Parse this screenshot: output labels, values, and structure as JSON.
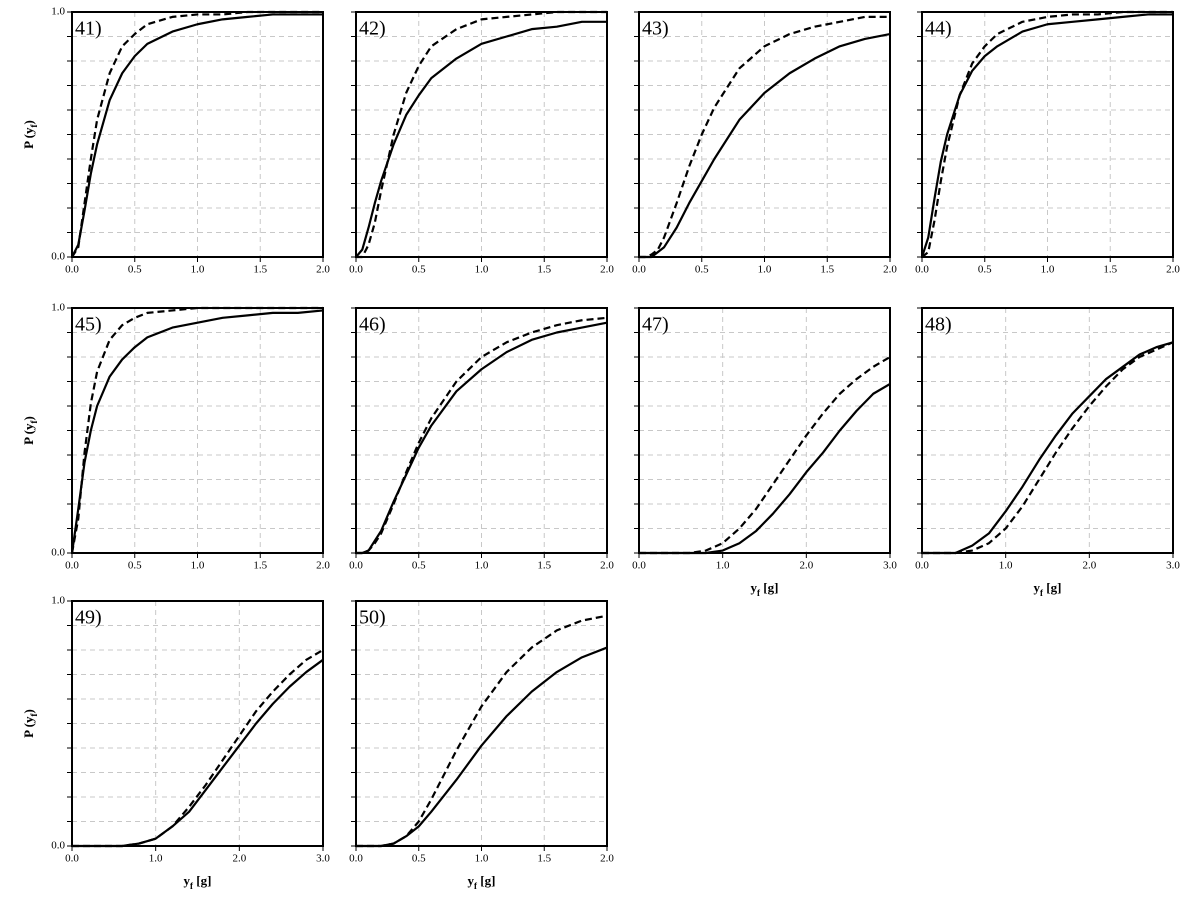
{
  "chart_data": [
    {
      "type": "line",
      "label": "41)",
      "ylabel": [
        "P (y",
        "f",
        ")"
      ],
      "x": [
        0,
        0.05,
        0.1,
        0.15,
        0.2,
        0.3,
        0.4,
        0.5,
        0.6,
        0.8,
        1,
        1.2,
        1.4,
        1.6,
        1.8,
        2
      ],
      "series": [
        {
          "color": "#000000",
          "dash": false,
          "values": [
            0,
            0.05,
            0.19,
            0.34,
            0.46,
            0.64,
            0.75,
            0.82,
            0.87,
            0.92,
            0.95,
            0.97,
            0.98,
            0.99,
            0.99,
            0.99
          ]
        },
        {
          "color": "#000000",
          "dash": true,
          "values": [
            0,
            0.04,
            0.22,
            0.4,
            0.56,
            0.75,
            0.86,
            0.91,
            0.95,
            0.98,
            0.99,
            0.99,
            1,
            1,
            1,
            1
          ]
        }
      ],
      "xlim": [
        0,
        2
      ],
      "xticks": [
        {
          "value": 0,
          "label": "0.0"
        },
        {
          "value": 0.5,
          "label": "0.5"
        },
        {
          "value": 1,
          "label": "1.0"
        },
        {
          "value": 1.5,
          "label": "1.5"
        },
        {
          "value": 2,
          "label": "2.0"
        }
      ],
      "ylim": [
        0,
        1
      ],
      "yticks": [
        {
          "value": 0,
          "label": "0.0"
        },
        0.1,
        0.2,
        0.3,
        0.4,
        0.5,
        0.6,
        0.7,
        0.8,
        0.9,
        {
          "value": 1,
          "label": "1.0"
        }
      ],
      "grid": true
    },
    {
      "type": "line",
      "label": "42)",
      "x": [
        0,
        0.05,
        0.1,
        0.15,
        0.2,
        0.3,
        0.4,
        0.5,
        0.6,
        0.8,
        1,
        1.2,
        1.4,
        1.6,
        1.8,
        2
      ],
      "series": [
        {
          "color": "#000000",
          "dash": false,
          "values": [
            0,
            0.03,
            0.12,
            0.22,
            0.31,
            0.46,
            0.58,
            0.66,
            0.73,
            0.81,
            0.87,
            0.9,
            0.93,
            0.94,
            0.96,
            0.96
          ]
        },
        {
          "color": "#000000",
          "dash": true,
          "values": [
            0,
            0,
            0.05,
            0.14,
            0.27,
            0.5,
            0.67,
            0.78,
            0.86,
            0.93,
            0.97,
            0.98,
            0.99,
            1,
            1,
            1
          ]
        }
      ],
      "xlim": [
        0,
        2
      ],
      "xticks": [
        {
          "value": 0,
          "label": "0.0"
        },
        {
          "value": 0.5,
          "label": "0.5"
        },
        {
          "value": 1,
          "label": "1.0"
        },
        {
          "value": 1.5,
          "label": "1.5"
        },
        {
          "value": 2,
          "label": "2.0"
        }
      ],
      "ylim": [
        0,
        1
      ],
      "yticks": [
        0,
        0.1,
        0.2,
        0.3,
        0.4,
        0.5,
        0.6,
        0.7,
        0.8,
        0.9,
        1
      ],
      "grid": true
    },
    {
      "type": "line",
      "label": "43)",
      "x": [
        0,
        0.05,
        0.1,
        0.15,
        0.2,
        0.3,
        0.4,
        0.5,
        0.6,
        0.8,
        1,
        1.2,
        1.4,
        1.6,
        1.8,
        2
      ],
      "series": [
        {
          "color": "#000000",
          "dash": false,
          "values": [
            0,
            0,
            0,
            0.02,
            0.04,
            0.12,
            0.22,
            0.31,
            0.4,
            0.56,
            0.67,
            0.75,
            0.81,
            0.86,
            0.89,
            0.91
          ]
        },
        {
          "color": "#000000",
          "dash": true,
          "values": [
            0,
            0,
            0.01,
            0.03,
            0.08,
            0.22,
            0.37,
            0.5,
            0.61,
            0.77,
            0.86,
            0.91,
            0.94,
            0.96,
            0.98,
            0.98
          ]
        }
      ],
      "xlim": [
        0,
        2
      ],
      "xticks": [
        {
          "value": 0,
          "label": "0.0"
        },
        {
          "value": 0.5,
          "label": "0.5"
        },
        {
          "value": 1,
          "label": "1.0"
        },
        {
          "value": 1.5,
          "label": "1.5"
        },
        {
          "value": 2,
          "label": "2.0"
        }
      ],
      "ylim": [
        0,
        1
      ],
      "yticks": [
        0,
        0.1,
        0.2,
        0.3,
        0.4,
        0.5,
        0.6,
        0.7,
        0.8,
        0.9,
        1
      ],
      "grid": true
    },
    {
      "type": "line",
      "label": "44)",
      "x": [
        0,
        0.05,
        0.1,
        0.15,
        0.2,
        0.3,
        0.4,
        0.5,
        0.6,
        0.8,
        1,
        1.2,
        1.4,
        1.6,
        1.8,
        2
      ],
      "series": [
        {
          "color": "#000000",
          "dash": false,
          "values": [
            0,
            0.08,
            0.24,
            0.39,
            0.5,
            0.66,
            0.76,
            0.82,
            0.86,
            0.92,
            0.95,
            0.96,
            0.97,
            0.98,
            0.99,
            0.99
          ]
        },
        {
          "color": "#000000",
          "dash": true,
          "values": [
            0,
            0.02,
            0.15,
            0.31,
            0.45,
            0.66,
            0.79,
            0.86,
            0.91,
            0.96,
            0.98,
            0.99,
            0.99,
            1,
            1,
            1
          ]
        }
      ],
      "xlim": [
        0,
        2
      ],
      "xticks": [
        {
          "value": 0,
          "label": "0.0"
        },
        {
          "value": 0.5,
          "label": "0.5"
        },
        {
          "value": 1,
          "label": "1.0"
        },
        {
          "value": 1.5,
          "label": "1.5"
        },
        {
          "value": 2,
          "label": "2.0"
        }
      ],
      "ylim": [
        0,
        1
      ],
      "yticks": [
        0,
        0.1,
        0.2,
        0.3,
        0.4,
        0.5,
        0.6,
        0.7,
        0.8,
        0.9,
        1
      ],
      "grid": true
    },
    {
      "type": "line",
      "label": "45)",
      "ylabel": [
        "P (y",
        "f",
        ")"
      ],
      "x": [
        0,
        0.05,
        0.1,
        0.15,
        0.2,
        0.3,
        0.4,
        0.5,
        0.6,
        0.8,
        1,
        1.2,
        1.4,
        1.6,
        1.8,
        2
      ],
      "series": [
        {
          "color": "#000000",
          "dash": false,
          "values": [
            0,
            0.18,
            0.37,
            0.5,
            0.6,
            0.72,
            0.79,
            0.84,
            0.88,
            0.92,
            0.94,
            0.96,
            0.97,
            0.98,
            0.98,
            0.99
          ]
        },
        {
          "color": "#000000",
          "dash": true,
          "values": [
            0,
            0.14,
            0.41,
            0.61,
            0.74,
            0.87,
            0.93,
            0.96,
            0.98,
            0.99,
            1,
            1,
            1,
            1,
            1,
            1
          ]
        }
      ],
      "xlim": [
        0,
        2
      ],
      "xticks": [
        {
          "value": 0,
          "label": "0.0"
        },
        {
          "value": 0.5,
          "label": "0.5"
        },
        {
          "value": 1,
          "label": "1.0"
        },
        {
          "value": 1.5,
          "label": "1.5"
        },
        {
          "value": 2,
          "label": "2.0"
        }
      ],
      "ylim": [
        0,
        1
      ],
      "yticks": [
        {
          "value": 0,
          "label": "0.0"
        },
        0.1,
        0.2,
        0.3,
        0.4,
        0.5,
        0.6,
        0.7,
        0.8,
        0.9,
        {
          "value": 1,
          "label": "1.0"
        }
      ],
      "grid": true
    },
    {
      "type": "line",
      "label": "46)",
      "x": [
        0,
        0.05,
        0.1,
        0.15,
        0.2,
        0.3,
        0.4,
        0.5,
        0.6,
        0.8,
        1,
        1.2,
        1.4,
        1.6,
        1.8,
        2
      ],
      "series": [
        {
          "color": "#000000",
          "dash": false,
          "values": [
            0,
            0,
            0.01,
            0.05,
            0.09,
            0.21,
            0.32,
            0.43,
            0.52,
            0.66,
            0.75,
            0.82,
            0.87,
            0.9,
            0.92,
            0.94
          ]
        },
        {
          "color": "#000000",
          "dash": true,
          "values": [
            0,
            0,
            0.01,
            0.04,
            0.08,
            0.2,
            0.33,
            0.45,
            0.55,
            0.7,
            0.8,
            0.86,
            0.9,
            0.93,
            0.95,
            0.96
          ]
        }
      ],
      "xlim": [
        0,
        2
      ],
      "xticks": [
        {
          "value": 0,
          "label": "0.0"
        },
        {
          "value": 0.5,
          "label": "0.5"
        },
        {
          "value": 1,
          "label": "1.0"
        },
        {
          "value": 1.5,
          "label": "1.5"
        },
        {
          "value": 2,
          "label": "2.0"
        }
      ],
      "ylim": [
        0,
        1
      ],
      "yticks": [
        0,
        0.1,
        0.2,
        0.3,
        0.4,
        0.5,
        0.6,
        0.7,
        0.8,
        0.9,
        1
      ],
      "grid": true
    },
    {
      "type": "line",
      "label": "47)",
      "xlabel": [
        "y",
        "f",
        " [g]"
      ],
      "x": [
        0,
        0.2,
        0.4,
        0.6,
        0.8,
        1,
        1.2,
        1.4,
        1.6,
        1.8,
        2,
        2.2,
        2.4,
        2.6,
        2.8,
        3
      ],
      "series": [
        {
          "color": "#000000",
          "dash": false,
          "values": [
            0,
            0,
            0,
            0,
            0,
            0.01,
            0.04,
            0.09,
            0.16,
            0.24,
            0.33,
            0.41,
            0.5,
            0.58,
            0.65,
            0.69
          ]
        },
        {
          "color": "#000000",
          "dash": true,
          "values": [
            0,
            0,
            0,
            0,
            0.01,
            0.04,
            0.1,
            0.18,
            0.28,
            0.38,
            0.48,
            0.57,
            0.65,
            0.71,
            0.76,
            0.8
          ]
        }
      ],
      "xlim": [
        0,
        3
      ],
      "xticks": [
        {
          "value": 0,
          "label": "0.0"
        },
        {
          "value": 1,
          "label": "1.0"
        },
        {
          "value": 2,
          "label": "2.0"
        },
        {
          "value": 3,
          "label": "3.0"
        }
      ],
      "ylim": [
        0,
        1
      ],
      "yticks": [
        0,
        0.1,
        0.2,
        0.3,
        0.4,
        0.5,
        0.6,
        0.7,
        0.8,
        0.9,
        1
      ],
      "grid": true
    },
    {
      "type": "line",
      "label": "48)",
      "xlabel": [
        "y",
        "f",
        " [g]"
      ],
      "x": [
        0,
        0.2,
        0.4,
        0.6,
        0.8,
        1,
        1.2,
        1.4,
        1.6,
        1.8,
        2,
        2.2,
        2.4,
        2.6,
        2.8,
        3
      ],
      "series": [
        {
          "color": "#000000",
          "dash": false,
          "values": [
            0,
            0,
            0,
            0.03,
            0.08,
            0.17,
            0.27,
            0.38,
            0.48,
            0.57,
            0.64,
            0.71,
            0.76,
            0.81,
            0.84,
            0.86
          ]
        },
        {
          "color": "#000000",
          "dash": true,
          "values": [
            0,
            0,
            0,
            0.01,
            0.04,
            0.1,
            0.19,
            0.3,
            0.41,
            0.51,
            0.6,
            0.68,
            0.75,
            0.8,
            0.83,
            0.86
          ]
        }
      ],
      "xlim": [
        0,
        3
      ],
      "xticks": [
        {
          "value": 0,
          "label": "0.0"
        },
        {
          "value": 1,
          "label": "1.0"
        },
        {
          "value": 2,
          "label": "2.0"
        },
        {
          "value": 3,
          "label": "3.0"
        }
      ],
      "ylim": [
        0,
        1
      ],
      "yticks": [
        0,
        0.1,
        0.2,
        0.3,
        0.4,
        0.5,
        0.6,
        0.7,
        0.8,
        0.9,
        1
      ],
      "grid": true
    },
    {
      "type": "line",
      "label": "49)",
      "ylabel": [
        "P (y",
        "f",
        ")"
      ],
      "xlabel": [
        "y",
        "f",
        " [g]"
      ],
      "x": [
        0,
        0.2,
        0.4,
        0.6,
        0.8,
        1,
        1.2,
        1.4,
        1.6,
        1.8,
        2,
        2.2,
        2.4,
        2.6,
        2.8,
        3
      ],
      "series": [
        {
          "color": "#000000",
          "dash": false,
          "values": [
            0,
            0,
            0,
            0,
            0.01,
            0.03,
            0.08,
            0.14,
            0.23,
            0.32,
            0.41,
            0.5,
            0.58,
            0.65,
            0.71,
            0.76
          ]
        },
        {
          "color": "#000000",
          "dash": true,
          "values": [
            0,
            0,
            0,
            0,
            0.01,
            0.03,
            0.08,
            0.16,
            0.25,
            0.35,
            0.45,
            0.55,
            0.63,
            0.7,
            0.76,
            0.8
          ]
        }
      ],
      "xlim": [
        0,
        3
      ],
      "xticks": [
        {
          "value": 0,
          "label": "0.0"
        },
        {
          "value": 1,
          "label": "1.0"
        },
        {
          "value": 2,
          "label": "2.0"
        },
        {
          "value": 3,
          "label": "3.0"
        }
      ],
      "ylim": [
        0,
        1
      ],
      "yticks": [
        {
          "value": 0,
          "label": "0.0"
        },
        0.1,
        0.2,
        0.3,
        0.4,
        0.5,
        0.6,
        0.7,
        0.8,
        0.9,
        {
          "value": 1,
          "label": "1.0"
        }
      ],
      "grid": true
    },
    {
      "type": "line",
      "label": "50)",
      "xlabel": [
        "y",
        "f",
        " [g]"
      ],
      "x": [
        0,
        0.05,
        0.1,
        0.15,
        0.2,
        0.3,
        0.4,
        0.5,
        0.6,
        0.8,
        1,
        1.2,
        1.4,
        1.6,
        1.8,
        2
      ],
      "series": [
        {
          "color": "#000000",
          "dash": false,
          "values": [
            0,
            0,
            0,
            0,
            0,
            0.01,
            0.04,
            0.08,
            0.14,
            0.27,
            0.41,
            0.53,
            0.63,
            0.71,
            0.77,
            0.81
          ]
        },
        {
          "color": "#000000",
          "dash": true,
          "values": [
            0,
            0,
            0,
            0,
            0,
            0.01,
            0.04,
            0.1,
            0.19,
            0.39,
            0.57,
            0.71,
            0.81,
            0.88,
            0.92,
            0.94
          ]
        }
      ],
      "xlim": [
        0,
        2
      ],
      "xticks": [
        {
          "value": 0,
          "label": "0.0"
        },
        {
          "value": 0.5,
          "label": "0.5"
        },
        {
          "value": 1,
          "label": "1.0"
        },
        {
          "value": 1.5,
          "label": "1.5"
        },
        {
          "value": 2,
          "label": "2.0"
        }
      ],
      "ylim": [
        0,
        1
      ],
      "yticks": [
        0,
        0.1,
        0.2,
        0.3,
        0.4,
        0.5,
        0.6,
        0.7,
        0.8,
        0.9,
        1
      ],
      "grid": true
    }
  ]
}
